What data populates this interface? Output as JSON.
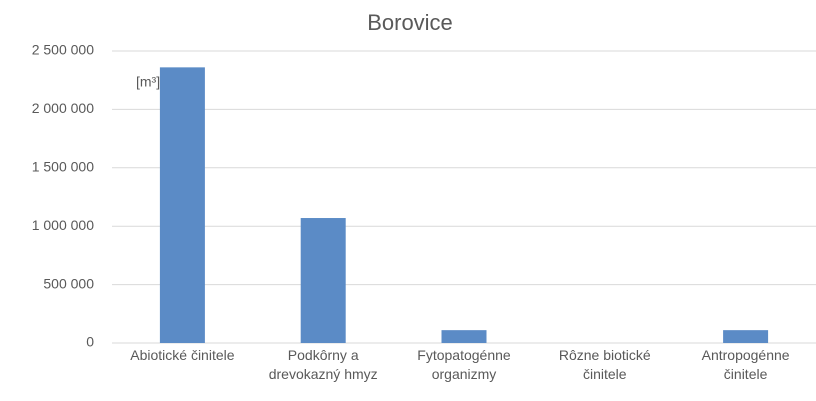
{
  "chart_data": {
    "type": "bar",
    "title": "Borovice",
    "unit": "[m³]",
    "categories": [
      "Abiotické činitele",
      "Podkôrny a drevokazný hmyz",
      "Fytopatogénne organizmy",
      "Rôzne biotické činitele",
      "Antropogénne činitele"
    ],
    "values": [
      2360000,
      1070000,
      110000,
      0,
      110000
    ],
    "color": "#5b8bc6",
    "ylim": [
      0,
      2500000
    ],
    "yticks": [
      0,
      {
        "value": 500000,
        "label": "500 000"
      },
      {
        "value": 1000000,
        "label": "1 000 000"
      },
      {
        "value": 1500000,
        "label": "1 500 000"
      },
      {
        "value": 2000000,
        "label": "2 000 000"
      },
      {
        "value": 2500000,
        "label": "2 500 000"
      }
    ],
    "grid": true
  }
}
